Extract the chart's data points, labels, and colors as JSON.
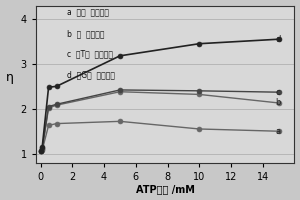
{
  "title": "",
  "xlabel": "ATP浓度 /mM",
  "ylabel": "η",
  "xlim": [
    -0.3,
    16
  ],
  "ylim": [
    0.8,
    4.3
  ],
  "yticks": [
    1,
    2,
    3,
    4
  ],
  "xticks": [
    0,
    2,
    4,
    6,
    8,
    10,
    12,
    14
  ],
  "series": {
    "a": {
      "label": "a  不分  裂适配体",
      "x": [
        0,
        0.1,
        0.5,
        1.0,
        5.0,
        10.0,
        15.0
      ],
      "y": [
        1.05,
        1.08,
        1.63,
        1.67,
        1.72,
        1.55,
        1.5
      ],
      "color": "#666666",
      "marker": "o",
      "markersize": 3.5,
      "linewidth": 1.0
    },
    "b": {
      "label": "b  分  裂适配体",
      "x": [
        0,
        0.1,
        0.5,
        1.0,
        5.0,
        10.0,
        15.0
      ],
      "y": [
        1.05,
        1.1,
        2.02,
        2.08,
        2.38,
        2.32,
        2.13
      ],
      "color": "#666666",
      "marker": "o",
      "markersize": 3.5,
      "linewidth": 1.0
    },
    "c": {
      "label": "c  富 T分  裂适配体",
      "x": [
        0,
        0.1,
        0.5,
        1.0,
        5.0,
        10.0,
        15.0
      ],
      "y": [
        1.05,
        1.12,
        2.05,
        2.1,
        2.42,
        2.4,
        2.37
      ],
      "color": "#444444",
      "marker": "o",
      "markersize": 3.5,
      "linewidth": 1.0
    },
    "d": {
      "label": "d  富 G分  裂适配体",
      "x": [
        0,
        0.1,
        0.5,
        1.0,
        5.0,
        10.0,
        15.0
      ],
      "y": [
        1.05,
        1.15,
        2.48,
        2.5,
        3.18,
        3.45,
        3.55
      ],
      "color": "#222222",
      "marker": "o",
      "markersize": 3.5,
      "linewidth": 1.2
    }
  },
  "series_labels_pos": {
    "a": [
      14.8,
      1.5
    ],
    "b": [
      14.8,
      2.13
    ],
    "c": [
      14.8,
      2.37
    ],
    "d": [
      14.8,
      3.55
    ]
  },
  "legend_entries": [
    [
      "a",
      "不分  裂适配体"
    ],
    [
      "b",
      "分  裂适配体"
    ],
    [
      "c",
      "富T分  裂适配体"
    ],
    [
      "d",
      "富G分  裂适配体"
    ]
  ],
  "background_color": "#c8c8c8",
  "plot_background": "#d8d8d8",
  "grid_color": "#aaaaaa",
  "tick_fontsize": 7,
  "label_fontsize": 7,
  "legend_fontsize": 5.5
}
